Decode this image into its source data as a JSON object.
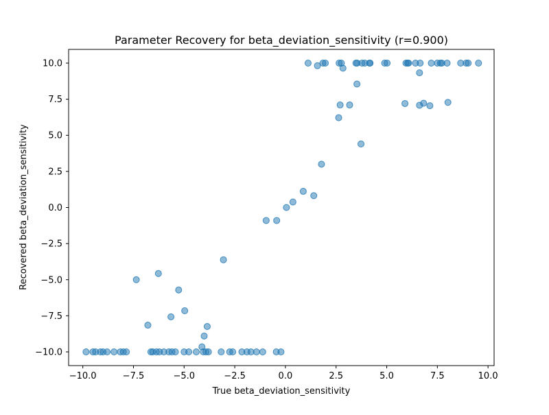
{
  "chart_data": {
    "type": "scatter",
    "title": "Parameter Recovery for beta_deviation_sensitivity (r=0.900)",
    "xlabel": "True beta_deviation_sensitivity",
    "ylabel": "Recovered beta_deviation_sensitivity",
    "xlim": [
      -10.7,
      10.3
    ],
    "ylim": [
      -10.95,
      10.95
    ],
    "xticks": [
      -10.0,
      -7.5,
      -5.0,
      -2.5,
      0.0,
      2.5,
      5.0,
      7.5,
      10.0
    ],
    "xtick_labels": [
      "−10.0",
      "−7.5",
      "−5.0",
      "−2.5",
      "0.0",
      "2.5",
      "5.0",
      "7.5",
      "10.0"
    ],
    "yticks": [
      -10.0,
      -7.5,
      -5.0,
      -2.5,
      0.0,
      2.5,
      5.0,
      7.5,
      10.0
    ],
    "ytick_labels": [
      "−10.0",
      "−7.5",
      "−5.0",
      "−2.5",
      "0.0",
      "2.5",
      "5.0",
      "7.5",
      "10.0"
    ],
    "grid": false,
    "legend": "none",
    "marker_color": "#1f77b4",
    "marker_alpha": 0.5,
    "points": [
      [
        -9.84,
        -10.0
      ],
      [
        -9.5,
        -10.0
      ],
      [
        -9.37,
        -10.0
      ],
      [
        -9.13,
        -10.0
      ],
      [
        -9.0,
        -10.0
      ],
      [
        -8.8,
        -10.0
      ],
      [
        -8.46,
        -10.0
      ],
      [
        -8.15,
        -10.0
      ],
      [
        -8.0,
        -10.0
      ],
      [
        -7.85,
        -10.0
      ],
      [
        -7.36,
        -5.0
      ],
      [
        -6.79,
        -8.15
      ],
      [
        -6.64,
        -10.0
      ],
      [
        -6.55,
        -10.0
      ],
      [
        -6.37,
        -10.0
      ],
      [
        -6.27,
        -4.57
      ],
      [
        -6.22,
        -10.0
      ],
      [
        -6.0,
        -10.0
      ],
      [
        -5.75,
        -10.0
      ],
      [
        -5.65,
        -7.57
      ],
      [
        -5.6,
        -10.0
      ],
      [
        -5.43,
        -10.0
      ],
      [
        -5.27,
        -5.71
      ],
      [
        -5.0,
        -10.0
      ],
      [
        -4.97,
        -7.15
      ],
      [
        -4.77,
        -10.0
      ],
      [
        -4.4,
        -10.0
      ],
      [
        -4.12,
        -9.65
      ],
      [
        -4.05,
        -10.0
      ],
      [
        -4.01,
        -8.9
      ],
      [
        -3.92,
        -10.0
      ],
      [
        -3.8,
        -10.0
      ],
      [
        -3.86,
        -8.24
      ],
      [
        -3.17,
        -10.0
      ],
      [
        -3.06,
        -3.62
      ],
      [
        -2.75,
        -10.0
      ],
      [
        -2.6,
        -10.0
      ],
      [
        -2.15,
        -10.0
      ],
      [
        -1.9,
        -10.0
      ],
      [
        -1.7,
        -10.0
      ],
      [
        -1.43,
        -10.0
      ],
      [
        -1.12,
        -10.0
      ],
      [
        -0.95,
        -0.9
      ],
      [
        -0.43,
        -0.9
      ],
      [
        -0.45,
        -10.0
      ],
      [
        -0.22,
        -10.0
      ],
      [
        0.05,
        0.0
      ],
      [
        0.37,
        0.38
      ],
      [
        0.88,
        1.12
      ],
      [
        1.12,
        10.0
      ],
      [
        1.4,
        0.82
      ],
      [
        1.58,
        9.82
      ],
      [
        1.78,
        3.0
      ],
      [
        1.85,
        10.0
      ],
      [
        1.97,
        10.0
      ],
      [
        2.63,
        6.22
      ],
      [
        2.65,
        10.0
      ],
      [
        2.7,
        7.1
      ],
      [
        2.76,
        10.0
      ],
      [
        2.84,
        9.65
      ],
      [
        3.17,
        7.1
      ],
      [
        3.48,
        10.0
      ],
      [
        3.54,
        10.0
      ],
      [
        3.53,
        8.55
      ],
      [
        3.78,
        10.0
      ],
      [
        3.73,
        4.4
      ],
      [
        3.92,
        10.0
      ],
      [
        4.15,
        10.0
      ],
      [
        4.18,
        10.0
      ],
      [
        4.9,
        10.0
      ],
      [
        5.02,
        10.0
      ],
      [
        5.9,
        7.2
      ],
      [
        5.95,
        10.0
      ],
      [
        6.03,
        10.0
      ],
      [
        6.08,
        10.0
      ],
      [
        6.42,
        10.0
      ],
      [
        6.62,
        9.33
      ],
      [
        6.62,
        7.08
      ],
      [
        6.65,
        10.0
      ],
      [
        6.82,
        7.22
      ],
      [
        7.13,
        7.05
      ],
      [
        7.2,
        10.0
      ],
      [
        7.5,
        10.0
      ],
      [
        7.65,
        10.0
      ],
      [
        7.72,
        10.0
      ],
      [
        7.98,
        10.0
      ],
      [
        8.02,
        7.28
      ],
      [
        8.65,
        10.0
      ],
      [
        8.92,
        10.0
      ],
      [
        9.02,
        10.0
      ],
      [
        9.53,
        10.0
      ]
    ]
  }
}
